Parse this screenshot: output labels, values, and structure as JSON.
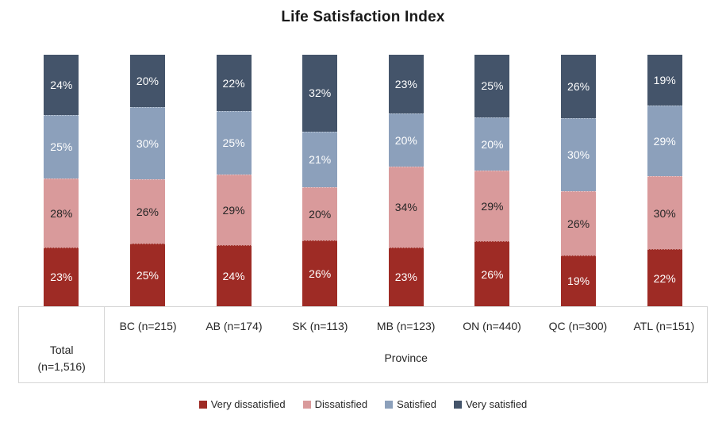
{
  "chart_data": {
    "type": "bar",
    "variant": "stacked-100-percent-column",
    "title": "Life Satisfaction Index",
    "categories": [
      "Total (n=1,516)",
      "BC (n=215)",
      "AB (n=174)",
      "SK (n=113)",
      "MB (n=123)",
      "ON (n=440)",
      "QC (n=300)",
      "ATL (n=151)"
    ],
    "series": [
      {
        "name": "Very dissatisfied",
        "color": "#9E2B25",
        "label_color": "#FFFFFF",
        "values": [
          23,
          25,
          24,
          26,
          23,
          26,
          19,
          22
        ]
      },
      {
        "name": "Dissatisfied",
        "color": "#D99A9B",
        "label_color": "#262626",
        "values": [
          28,
          26,
          29,
          20,
          34,
          29,
          26,
          30
        ]
      },
      {
        "name": "Satisfied",
        "color": "#8CA0BB",
        "label_color": "#FFFFFF",
        "values": [
          25,
          30,
          25,
          21,
          20,
          20,
          30,
          29
        ]
      },
      {
        "name": "Very satisfied",
        "color": "#44546A",
        "label_color": "#FFFFFF",
        "values": [
          24,
          20,
          22,
          32,
          23,
          25,
          26,
          19
        ]
      }
    ],
    "value_suffix": "%",
    "ylim": [
      0,
      100
    ],
    "grid": false,
    "y_axis_visible": false,
    "data_labels": "center",
    "legend_position": "bottom"
  },
  "axis": {
    "total_label_lines": [
      "Total",
      "(n=1,516)"
    ],
    "province_labels": [
      "BC (n=215)",
      "AB (n=174)",
      "SK (n=113)",
      "MB (n=123)",
      "ON (n=440)",
      "QC (n=300)",
      "ATL (n=151)"
    ],
    "group_label": "Province"
  },
  "legend": {
    "items": [
      "Very dissatisfied",
      "Dissatisfied",
      "Satisfied",
      "Very satisfied"
    ]
  },
  "colors": {
    "very_dissatisfied": "#9E2B25",
    "dissatisfied": "#D99A9B",
    "satisfied": "#8CA0BB",
    "very_satisfied": "#44546A",
    "table_border": "#D6D6D6",
    "text": "#262626",
    "title_text": "#1A1A1A",
    "background": "#FFFFFF"
  }
}
